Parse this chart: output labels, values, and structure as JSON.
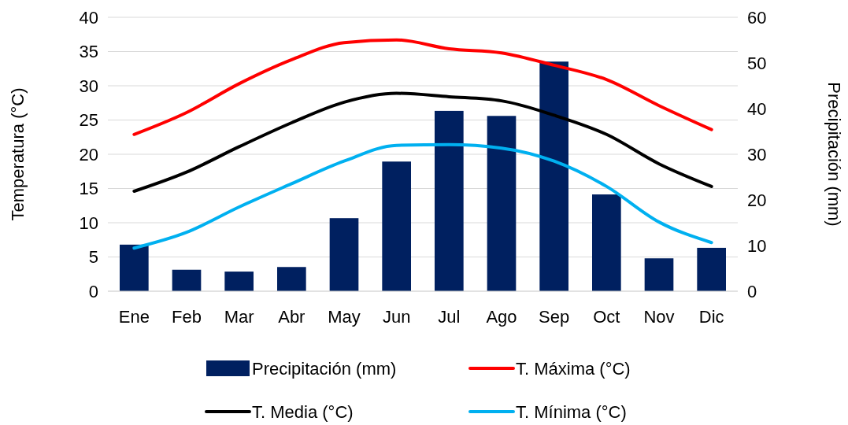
{
  "chart_data": {
    "type": "bar",
    "categories": [
      "Ene",
      "Feb",
      "Mar",
      "Abr",
      "May",
      "Jun",
      "Jul",
      "Ago",
      "Sep",
      "Oct",
      "Nov",
      "Dic"
    ],
    "ylabel": "Temperatura (°C)",
    "y2label": "Precipitación (mm)",
    "ylim": [
      0,
      40
    ],
    "yticks": [
      0,
      5,
      10,
      15,
      20,
      25,
      30,
      35,
      40
    ],
    "y2lim": [
      0,
      60
    ],
    "y2ticks": [
      0,
      10,
      20,
      30,
      40,
      50,
      60
    ],
    "grid": "y",
    "legend": "bottom",
    "series": [
      {
        "name": "Precipitación (mm)",
        "axis": "y2",
        "color": "#002060",
        "values": [
          10.2,
          4.7,
          4.3,
          5.3,
          16.0,
          28.4,
          39.5,
          38.4,
          50.3,
          21.2,
          7.2,
          9.5
        ]
      },
      {
        "name": "T. Máxima (°C)",
        "type": "line",
        "color": "#ff0000",
        "values": [
          22.9,
          26.1,
          30.3,
          33.8,
          36.3,
          36.7,
          35.4,
          34.8,
          33.0,
          30.9,
          27.1,
          23.6
        ]
      },
      {
        "name": "T. Media (°C)",
        "type": "line",
        "color": "#000000",
        "values": [
          14.6,
          17.4,
          21.1,
          24.6,
          27.6,
          28.9,
          28.4,
          27.8,
          25.7,
          22.9,
          18.6,
          15.3
        ]
      },
      {
        "name": "T. Mínima (°C)",
        "type": "line",
        "color": "#00b0f0",
        "values": [
          6.3,
          8.6,
          12.3,
          15.7,
          19.0,
          21.3,
          21.4,
          20.9,
          19.0,
          15.3,
          10.1,
          7.1
        ]
      }
    ]
  }
}
